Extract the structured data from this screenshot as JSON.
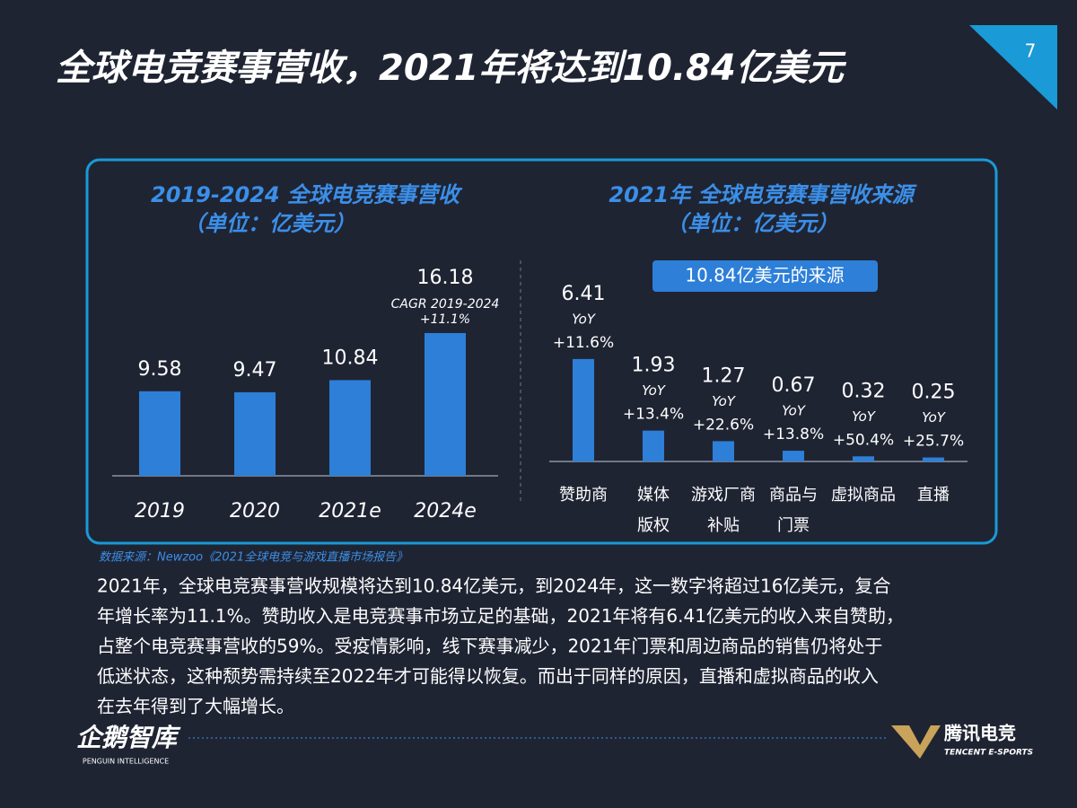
{
  "title": "全球电竞赛事营收，2021年将达到10.84亿美元",
  "page_number": "7",
  "chart_data": [
    {
      "type": "bar",
      "title": "2019-2024 全球电竞赛事营收",
      "subtitle": "（单位：亿美元）",
      "categories": [
        "2019",
        "2020",
        "2021e",
        "2024e"
      ],
      "values": [
        9.58,
        9.47,
        10.84,
        16.18
      ],
      "color": "#2d7fd8",
      "annotations": [
        "CAGR 2019-2024",
        "+11.1%"
      ]
    },
    {
      "type": "bar",
      "title": "2021年 全球电竞赛事营收来源",
      "subtitle": "（单位：亿美元）",
      "badge": "10.84亿美元的来源",
      "categories": [
        [
          "赞助商"
        ],
        [
          "媒体",
          "版权"
        ],
        [
          "游戏厂商",
          "补贴"
        ],
        [
          "商品与",
          "门票"
        ],
        [
          "虚拟商品"
        ],
        [
          "直播"
        ]
      ],
      "values": [
        6.41,
        1.93,
        1.27,
        0.67,
        0.32,
        0.25
      ],
      "color": "#2d7fd8",
      "yoy_label": "YoY",
      "yoy": [
        "+11.6%",
        "+13.4%",
        "+22.6%",
        "+13.8%",
        "+50.4%",
        "+25.7%"
      ]
    }
  ],
  "source": "数据来源：Newzoo《2021全球电竞与游戏直播市场报告》",
  "body": [
    "2021年，全球电竞赛事营收规模将达到10.84亿美元，到2024年，这一数字将超过16亿美元，复合",
    "年增长率为11.1%。赞助收入是电竞赛事市场立足的基础，2021年将有6.41亿美元的收入来自赞助，",
    "占整个电竞赛事营收的59%。受疫情影响，线下赛事减少，2021年门票和周边商品的销售仍将处于",
    "低迷状态，这种颓势需持续至2022年才可能得以恢复。而出于同样的原因，直播和虚拟商品的收入",
    "在去年得到了大幅增长。"
  ],
  "logo_left": {
    "name": "企鹅智库",
    "tagline": "PENGUIN INTELLIGENCE"
  },
  "logo_right": {
    "name": "腾讯电竞",
    "tagline": "TENCENT E-SPORTS"
  }
}
